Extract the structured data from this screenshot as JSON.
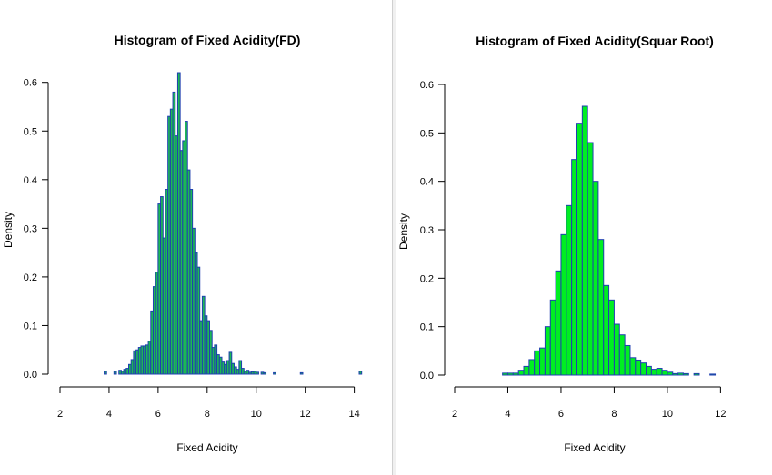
{
  "colors": {
    "bar_fill_left": "#1db954",
    "bar_fill_right": "#00ee22",
    "bar_stroke": "#1f3fb0",
    "background": "#ffffff"
  },
  "chart_data": [
    {
      "type": "bar",
      "title": "Histogram of Fixed Acidity(FD)",
      "xlabel": "Fixed Acidity",
      "ylabel": "Density",
      "xlim": [
        2,
        14.2
      ],
      "ylim": [
        0,
        0.62
      ],
      "xticks": [
        "2",
        "4",
        "6",
        "8",
        "10",
        "12",
        "14"
      ],
      "yticks": [
        "0.0",
        "0.1",
        "0.2",
        "0.3",
        "0.4",
        "0.5",
        "0.6"
      ],
      "bin_width": 0.1,
      "x": [
        3.8,
        4.2,
        4.4,
        4.5,
        4.6,
        4.7,
        4.8,
        4.9,
        5.0,
        5.1,
        5.2,
        5.3,
        5.4,
        5.5,
        5.6,
        5.7,
        5.8,
        5.9,
        6.0,
        6.1,
        6.2,
        6.3,
        6.4,
        6.5,
        6.6,
        6.7,
        6.8,
        6.9,
        7.0,
        7.1,
        7.2,
        7.3,
        7.4,
        7.5,
        7.6,
        7.7,
        7.8,
        7.9,
        8.0,
        8.1,
        8.2,
        8.3,
        8.4,
        8.5,
        8.6,
        8.7,
        8.8,
        8.9,
        9.0,
        9.1,
        9.2,
        9.3,
        9.4,
        9.5,
        9.6,
        9.7,
        9.8,
        9.9,
        10.0,
        10.2,
        10.3,
        10.7,
        11.8,
        14.2
      ],
      "values": [
        0.006,
        0.006,
        0.008,
        0.006,
        0.01,
        0.012,
        0.02,
        0.03,
        0.048,
        0.05,
        0.055,
        0.058,
        0.058,
        0.06,
        0.068,
        0.13,
        0.18,
        0.21,
        0.35,
        0.365,
        0.28,
        0.38,
        0.53,
        0.545,
        0.58,
        0.49,
        0.62,
        0.46,
        0.48,
        0.52,
        0.42,
        0.38,
        0.3,
        0.25,
        0.22,
        0.11,
        0.16,
        0.12,
        0.11,
        0.09,
        0.055,
        0.06,
        0.04,
        0.035,
        0.025,
        0.02,
        0.028,
        0.045,
        0.022,
        0.015,
        0.01,
        0.028,
        0.012,
        0.006,
        0.008,
        0.004,
        0.005,
        0.006,
        0.004,
        0.004,
        0.003,
        0.003,
        0.003,
        0.006
      ]
    },
    {
      "type": "bar",
      "title": "Histogram of Fixed Acidity(Squar Root)",
      "xlabel": "Fixed Acidity",
      "ylabel": "Density",
      "xlim": [
        2,
        12.5
      ],
      "ylim": [
        0,
        0.6
      ],
      "xticks": [
        "2",
        "4",
        "6",
        "8",
        "10",
        "12"
      ],
      "yticks": [
        "0.0",
        "0.1",
        "0.2",
        "0.3",
        "0.4",
        "0.5",
        "0.6"
      ],
      "bin_width": 0.2,
      "x": [
        3.8,
        4.0,
        4.2,
        4.4,
        4.6,
        4.8,
        5.0,
        5.2,
        5.4,
        5.6,
        5.8,
        6.0,
        6.2,
        6.4,
        6.6,
        6.8,
        7.0,
        7.2,
        7.4,
        7.6,
        7.8,
        8.0,
        8.2,
        8.4,
        8.6,
        8.8,
        9.0,
        9.2,
        9.4,
        9.6,
        9.8,
        10.0,
        10.2,
        10.4,
        10.6,
        11.0,
        11.6
      ],
      "values": [
        0.004,
        0.004,
        0.004,
        0.01,
        0.018,
        0.032,
        0.05,
        0.056,
        0.1,
        0.155,
        0.215,
        0.29,
        0.35,
        0.445,
        0.52,
        0.555,
        0.48,
        0.4,
        0.28,
        0.185,
        0.155,
        0.105,
        0.083,
        0.061,
        0.036,
        0.031,
        0.025,
        0.018,
        0.012,
        0.014,
        0.01,
        0.006,
        0.003,
        0.004,
        0.003,
        0.003,
        0.002
      ]
    }
  ]
}
